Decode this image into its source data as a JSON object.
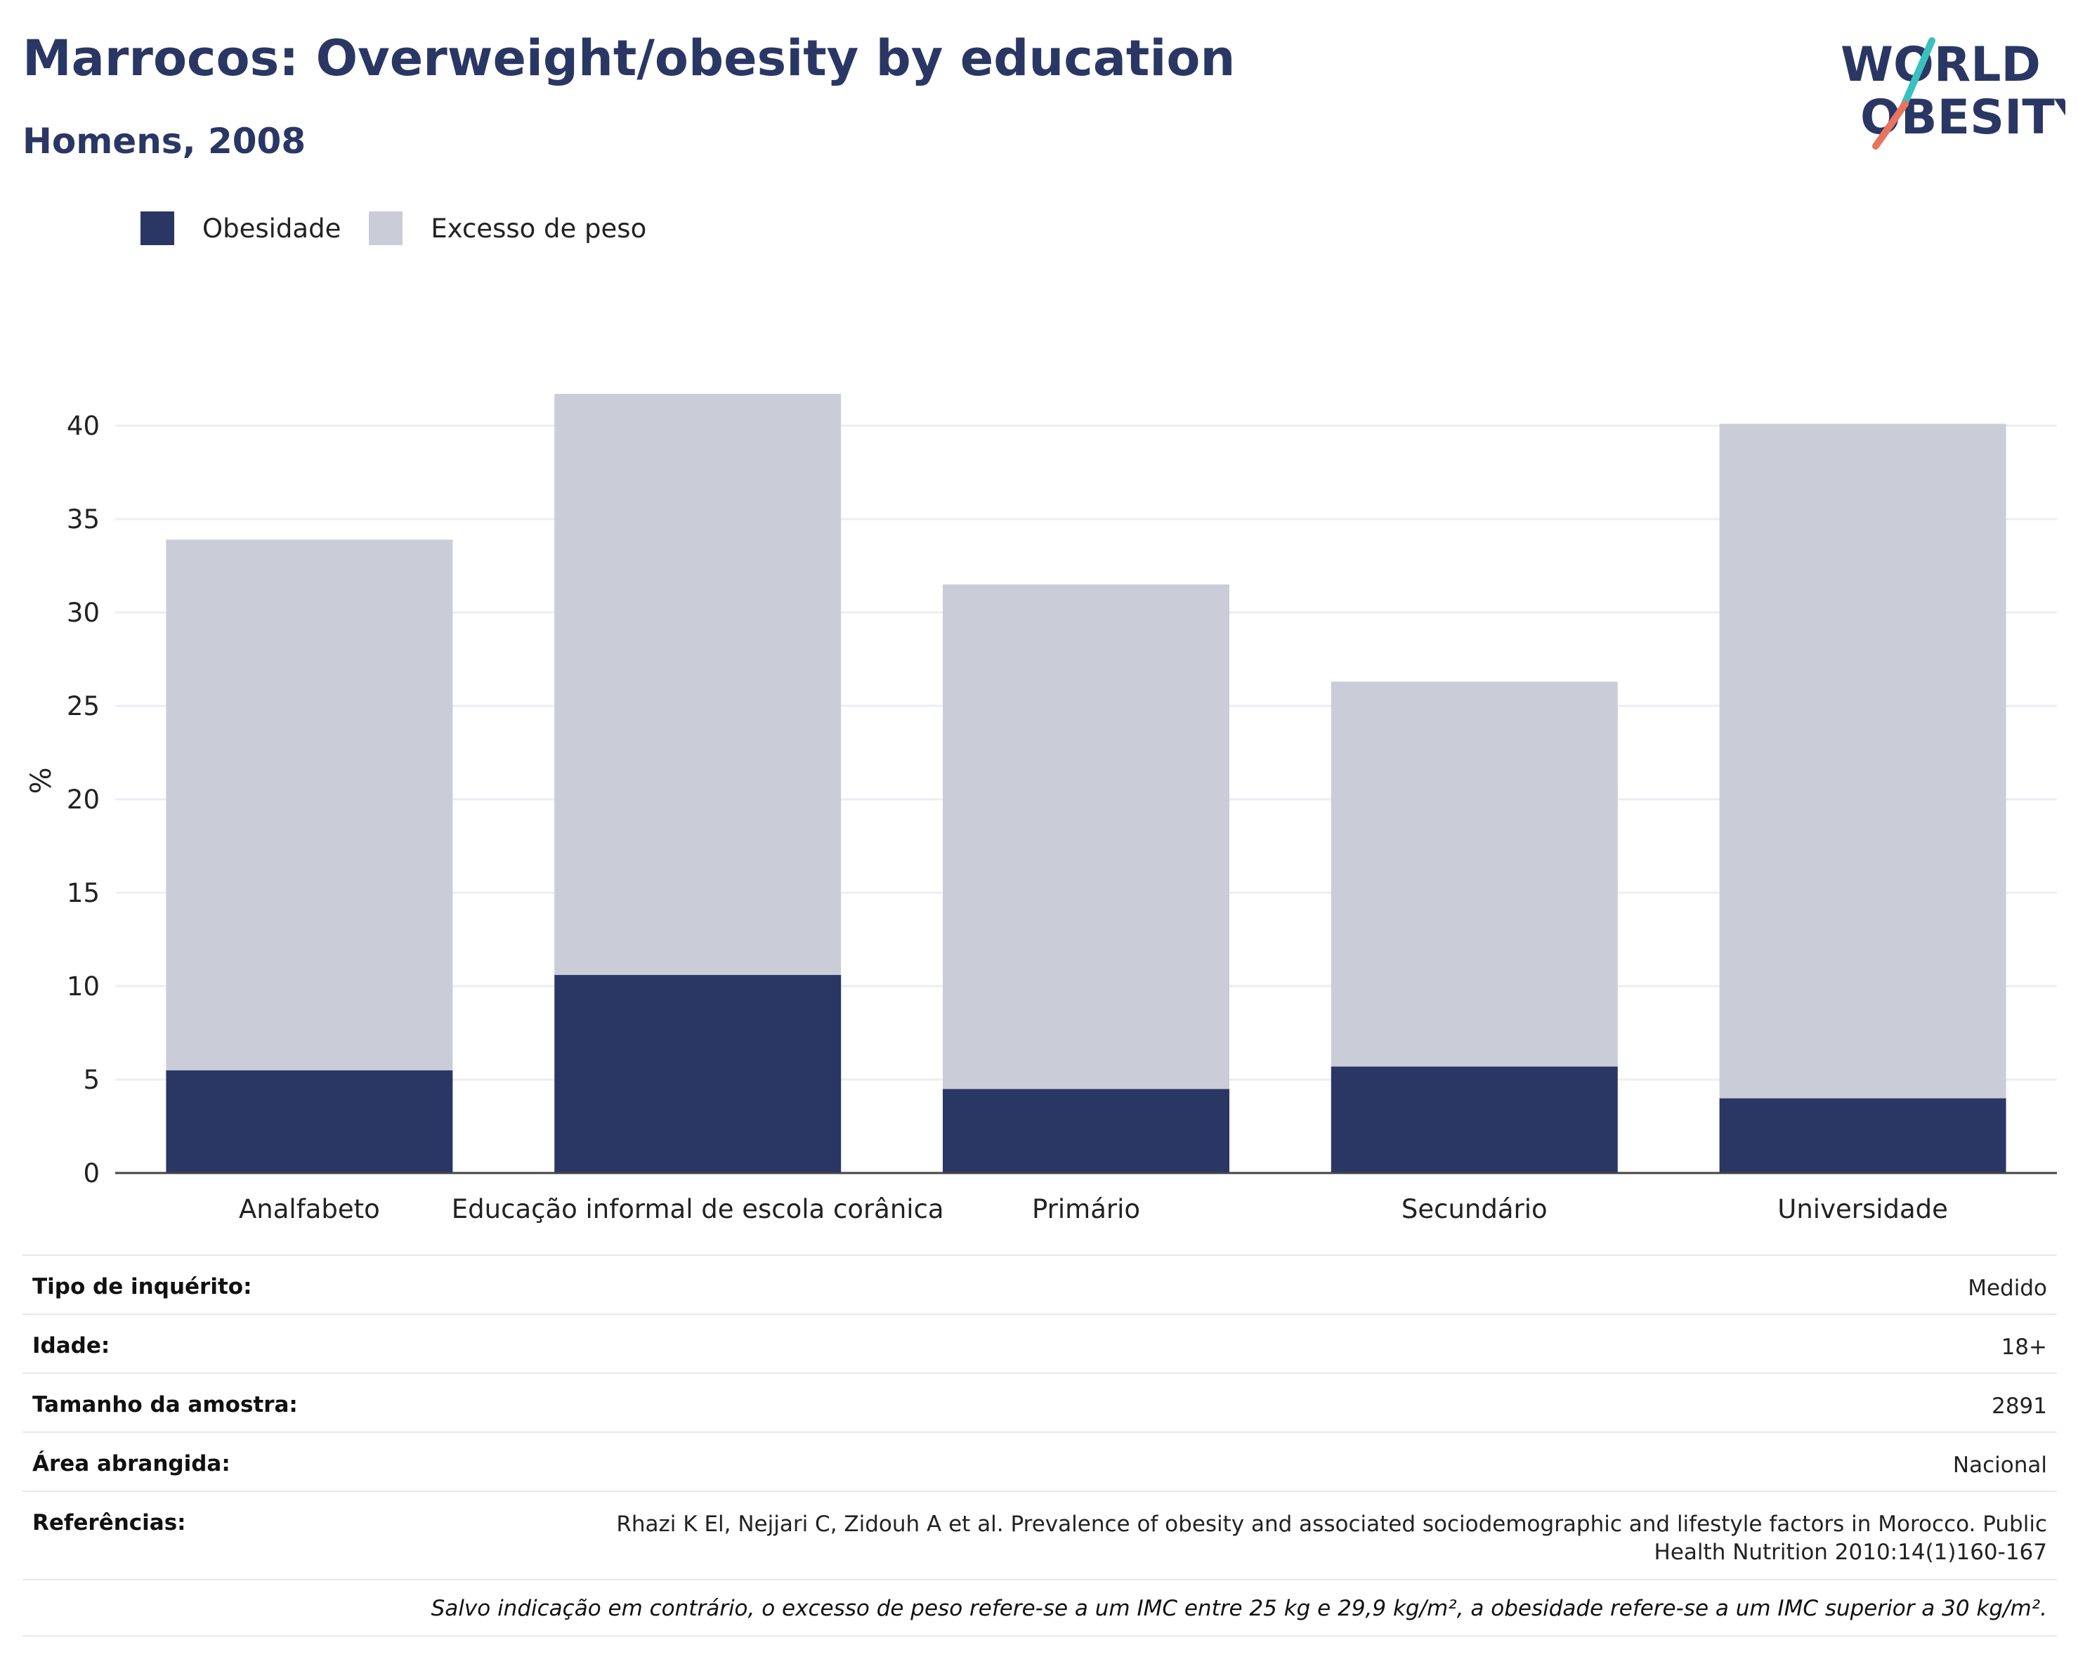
{
  "header": {
    "title": "Marrocos: Overweight/obesity by education",
    "subtitle": "Homens, 2008"
  },
  "logo": {
    "line1": "WORLD",
    "line2": "OBESITY"
  },
  "legend": [
    {
      "label": "Obesidade",
      "color": "#2a3764"
    },
    {
      "label": "Excesso de peso",
      "color": "#cacdd8"
    }
  ],
  "chart_data": {
    "type": "bar",
    "stacked": true,
    "categories": [
      "Analfabeto",
      "Educação informal de escola corânica",
      "Primário",
      "Secundário",
      "Universidade"
    ],
    "series": [
      {
        "name": "Obesidade",
        "color": "#2a3764",
        "values": [
          5.5,
          10.6,
          4.5,
          5.7,
          4.0
        ]
      },
      {
        "name": "Excesso de peso",
        "color": "#cacdd8",
        "values": [
          28.4,
          31.1,
          27.0,
          20.6,
          36.1
        ]
      }
    ],
    "ylabel": "%",
    "ylim": [
      0,
      42
    ],
    "yticks": [
      0,
      5,
      10,
      15,
      20,
      25,
      30,
      35,
      40
    ],
    "grid": true,
    "legend_position": "top-left"
  },
  "meta": {
    "rows": [
      {
        "key": "Tipo de inquérito:",
        "value": "Medido"
      },
      {
        "key": "Idade:",
        "value": "18+"
      },
      {
        "key": "Tamanho da amostra:",
        "value": "2891"
      },
      {
        "key": "Área abrangida:",
        "value": "Nacional"
      },
      {
        "key": "Referências:",
        "value": "Rhazi K El, Nejjari C, Zidouh A et al. Prevalence of obesity and associated sociodemographic and lifestyle factors in Morocco. Public Health Nutrition 2010:14(1)160-167"
      }
    ],
    "footnote": "Salvo indicação em contrário, o excesso de peso refere-se a um IMC entre 25 kg e 29,9 kg/m², a obesidade refere-se a um IMC superior a 30 kg/m²."
  }
}
